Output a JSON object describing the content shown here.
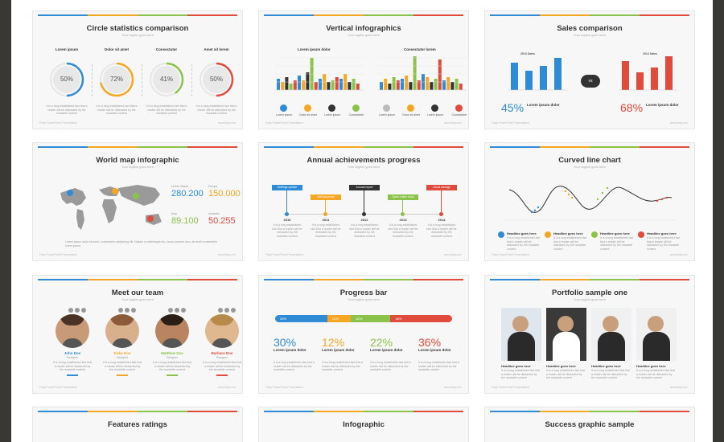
{
  "accent": {
    "blue": "#2f8bd6",
    "orange": "#f5a623",
    "green": "#8bc34a",
    "red": "#e04b3c",
    "dark": "#333333"
  },
  "footer": {
    "left": "Flaty PowerPoint Presentation",
    "right": "www.flaty.com"
  },
  "body_text": "It is a long established fact that a reader will be distracted by the readable content",
  "slides": {
    "circle": {
      "title": "Circle statistics comparison",
      "subtitle": "Your tagline goes here",
      "items": [
        {
          "label": "Lorem ipsum",
          "value": "50%",
          "pct": 50,
          "color": "#2f8bd6"
        },
        {
          "label": "Dolor sit amet",
          "value": "72%",
          "pct": 72,
          "color": "#f5a623"
        },
        {
          "label": "Consectuter",
          "value": "41%",
          "pct": 41,
          "color": "#8bc34a"
        },
        {
          "label": "Amet sit lorem",
          "value": "50%",
          "pct": 50,
          "color": "#e04b3c"
        }
      ]
    },
    "vertical": {
      "title": "Vertical infographics",
      "subtitle": "Your tagline goes here",
      "left_label": "Lorem ipsum dolor",
      "right_label": "Consectuter lorem",
      "icons": [
        "Lorem ipsum",
        "Dolor sit amet",
        "Lorem ipsum",
        "Consectuter"
      ]
    },
    "sales": {
      "title": "Sales comparison",
      "subtitle": "Your tagline goes here",
      "left_year": "2013 Sales",
      "right_year": "2014 Sales",
      "vs": "vs",
      "left_pct": "45%",
      "right_pct": "68%",
      "left_caption": "Lorem ipsum dolor",
      "right_caption": "Lorem ipsum dolor"
    },
    "world": {
      "title": "World map infographic",
      "subtitle": "Your tagline goes here",
      "stats": [
        {
          "region": "United States",
          "value": "280.200",
          "color": "#2f8bd6"
        },
        {
          "region": "Europe",
          "value": "150.000",
          "color": "#f5a623"
        },
        {
          "region": "Asia",
          "value": "89.100",
          "color": "#8bc34a"
        },
        {
          "region": "Australia",
          "value": "50.255",
          "color": "#e04b3c"
        }
      ],
      "caption": "Lorem ipsum dolor sit amet, consectetur adipiscing elit. Nullam a scelerisque leo, lacus posuere arcu, sit amet consectetur lorem ipsum"
    },
    "annual": {
      "title": "Annual achievements progress",
      "subtitle": "Your tagline goes here",
      "steps": [
        {
          "label": "Settings update",
          "year": "2010",
          "color": "#2f8bd6"
        },
        {
          "label": "Self launched",
          "year": "2011",
          "color": "#f5a623"
        },
        {
          "label": "Annual report",
          "year": "2012",
          "color": "#333333"
        },
        {
          "label": "Open online shop",
          "year": "2013",
          "color": "#8bc34a"
        },
        {
          "label": "Cloud storage",
          "year": "2014",
          "color": "#e04b3c"
        }
      ]
    },
    "curved": {
      "title": "Curved line chart",
      "subtitle": "Your tagline goes here",
      "headlines": [
        "Headline goes here",
        "Headline goes here",
        "Headline goes here",
        "Headline goes here"
      ]
    },
    "team": {
      "title": "Meet our team",
      "subtitle": "Your tagline goes here",
      "members": [
        {
          "name": "John Doe",
          "role": "Designer",
          "color": "#2f8bd6"
        },
        {
          "name": "Erika Doe",
          "role": "Designer",
          "color": "#f5a623"
        },
        {
          "name": "Matthew Doe",
          "role": "Designer",
          "color": "#8bc34a"
        },
        {
          "name": "Barbara Doe",
          "role": "Designer",
          "color": "#e04b3c"
        }
      ]
    },
    "progress": {
      "title": "Progress bar",
      "subtitle": "Your tagline goes here",
      "segments": [
        {
          "value": "30%",
          "pct": 30,
          "color": "#2f8bd6"
        },
        {
          "value": "12%",
          "pct": 12,
          "color": "#f5a623"
        },
        {
          "value": "22%",
          "pct": 22,
          "color": "#8bc34a"
        },
        {
          "value": "36%",
          "pct": 36,
          "color": "#e04b3c"
        }
      ],
      "caption": "Lorem ipsum dolor"
    },
    "portfolio": {
      "title": "Portfolio sample one",
      "subtitle": "Your tagline goes here",
      "headlines": [
        "Headline goes here",
        "Headline goes here",
        "Headline goes here",
        "Headline goes here"
      ]
    },
    "features": {
      "title": "Features ratings"
    },
    "infographic": {
      "title": "Infographic"
    },
    "success": {
      "title": "Success graphic sample"
    }
  }
}
